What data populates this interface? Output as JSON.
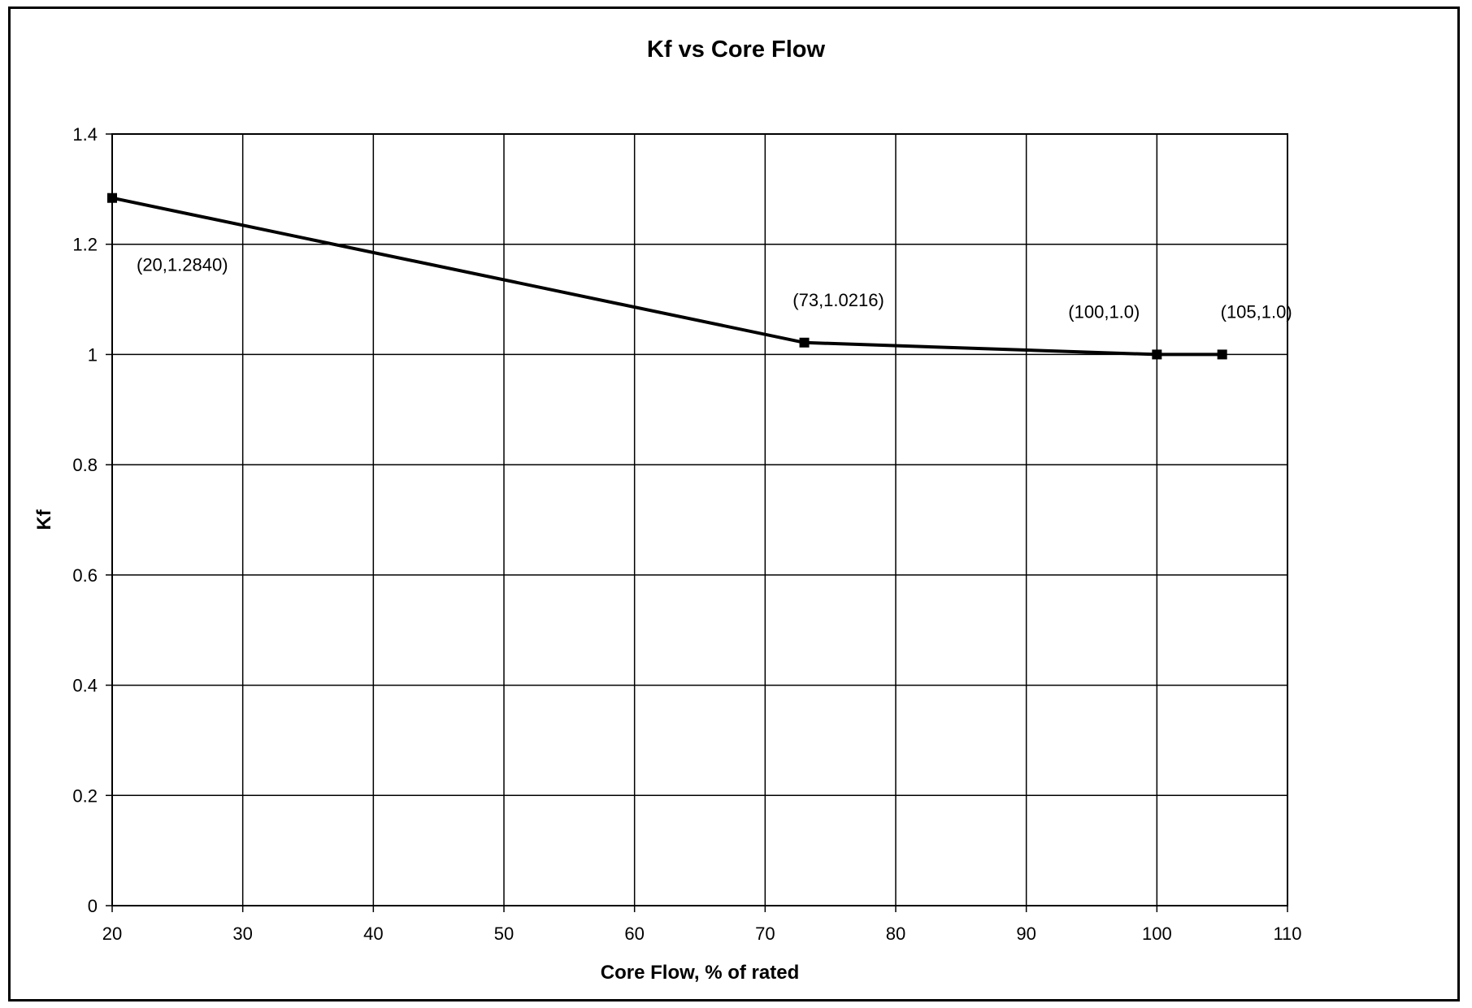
{
  "chart_data": {
    "type": "line",
    "title": "Kf vs Core Flow",
    "xlabel": "Core Flow, % of rated",
    "ylabel": "Kf",
    "xlim": [
      20,
      110
    ],
    "ylim": [
      0,
      1.4
    ],
    "xticks": [
      "20",
      "30",
      "40",
      "50",
      "60",
      "70",
      "80",
      "90",
      "100",
      "110"
    ],
    "yticks": [
      "0",
      "0.2",
      "0.4",
      "0.6",
      "0.8",
      "1",
      "1.2",
      "1.4"
    ],
    "grid": true,
    "legend": "none",
    "series": [
      {
        "points": [
          {
            "x": 20,
            "y": 1.284,
            "label": "(20,1.2840)"
          },
          {
            "x": 73,
            "y": 1.0216,
            "label": "(73,1.0216)"
          },
          {
            "x": 100,
            "y": 1.0,
            "label": "(100,1.0)"
          },
          {
            "x": 105,
            "y": 1.0,
            "label": "(105,1.0)"
          }
        ]
      }
    ]
  }
}
